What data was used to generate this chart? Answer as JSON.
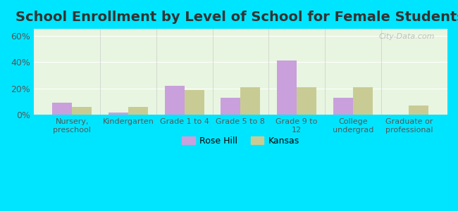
{
  "title": "School Enrollment by Level of School for Female Students",
  "categories": [
    "Nursery,\npreschool",
    "Kindergarten",
    "Grade 1 to 4",
    "Grade 5 to 8",
    "Grade 9 to\n12",
    "College\nundergrad",
    "Graduate or\nprofessional"
  ],
  "rose_hill": [
    9,
    2,
    22,
    13,
    41,
    13,
    0
  ],
  "kansas": [
    6,
    6,
    19,
    21,
    21,
    21,
    7
  ],
  "rose_hill_color": "#c9a0dc",
  "kansas_color": "#c8cc94",
  "ylim": [
    0,
    65
  ],
  "yticks": [
    0,
    20,
    40,
    60
  ],
  "ytick_labels": [
    "0%",
    "20%",
    "40%",
    "60%"
  ],
  "background_outer": "#00e5ff",
  "background_inner_top": "#e8f5e0",
  "background_inner_bottom": "#f5f5e8",
  "title_fontsize": 14,
  "legend_labels": [
    "Rose Hill",
    "Kansas"
  ],
  "bar_width": 0.35
}
